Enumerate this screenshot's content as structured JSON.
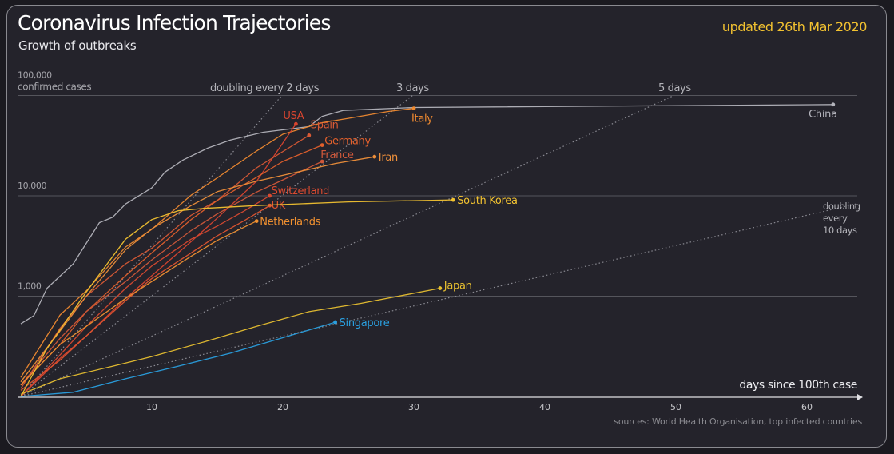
{
  "chart_data": {
    "type": "line",
    "title": "Coronavirus Infection Trajectories",
    "subtitle": "Growth of outbreaks",
    "updated": "updated 26th Mar 2020",
    "source": "sources: World Health Organisation, top infected countries",
    "xlabel": "days since 100th case",
    "ylabel": "confirmed cases",
    "xlim": [
      0,
      65
    ],
    "ylim": [
      100,
      100000
    ],
    "yscale": "log",
    "xticks": [
      10,
      20,
      30,
      40,
      50,
      60
    ],
    "yticks": [
      {
        "value": 1000,
        "label": "1,000"
      },
      {
        "value": 10000,
        "label": "10,000"
      },
      {
        "value": 100000,
        "label": "100,000"
      }
    ],
    "grid": true,
    "background": "#24232b",
    "guides": [
      {
        "doubling_days": 2,
        "label": "doubling every 2 days"
      },
      {
        "doubling_days": 3,
        "label": "3 days"
      },
      {
        "doubling_days": 5,
        "label": "5 days"
      },
      {
        "doubling_days": 10,
        "label": "doubling every 10 days"
      }
    ],
    "series": [
      {
        "name": "China",
        "color": "#b4b4bc",
        "x": [
          0,
          1,
          2,
          4,
          6,
          7,
          8,
          10,
          11,
          12.4,
          14.3,
          16,
          18.5,
          22,
          23,
          24.6,
          30,
          62
        ],
        "y": [
          530,
          640,
          1200,
          2100,
          5400,
          6100,
          8300,
          12000,
          17200,
          22800,
          30000,
          36000,
          43000,
          49000,
          62000,
          71000,
          76000,
          81300
        ]
      },
      {
        "name": "Italy",
        "color": "#f08a30",
        "x": [
          0,
          3,
          5,
          8,
          10,
          13,
          15,
          18,
          20,
          23,
          25,
          28,
          30
        ],
        "y": [
          155,
          650,
          1128,
          3089,
          4636,
          10149,
          15113,
          27980,
          41035,
          53578,
          59138,
          69176,
          74386
        ]
      },
      {
        "name": "USA",
        "color": "#d9452f",
        "x": [
          0,
          3,
          5,
          8,
          10,
          13,
          15,
          18,
          21
        ],
        "y": [
          100,
          240,
          400,
          950,
          1600,
          3500,
          6000,
          14000,
          52000
        ]
      },
      {
        "name": "Spain",
        "color": "#d95a35",
        "x": [
          0,
          3,
          5,
          8,
          10,
          13,
          15,
          18,
          22
        ],
        "y": [
          120,
          480,
          1000,
          2100,
          3000,
          6400,
          9000,
          19000,
          40000
        ]
      },
      {
        "name": "Germany",
        "color": "#e2602c",
        "x": [
          0,
          3,
          5,
          8,
          10,
          13,
          15,
          18,
          20,
          23
        ],
        "y": [
          130,
          330,
          700,
          1600,
          2700,
          5800,
          9000,
          15300,
          22000,
          32000
        ]
      },
      {
        "name": "France",
        "color": "#d0583a",
        "x": [
          0,
          3,
          5,
          8,
          10,
          13,
          15,
          18,
          20,
          23
        ],
        "y": [
          130,
          380,
          700,
          1400,
          2300,
          4500,
          6600,
          10900,
          14400,
          22000
        ]
      },
      {
        "name": "Iran",
        "color": "#f0903a",
        "x": [
          0,
          3,
          5,
          8,
          10,
          13,
          15,
          18,
          20,
          24,
          27
        ],
        "y": [
          140,
          450,
          1000,
          2900,
          4700,
          8000,
          11000,
          14000,
          16000,
          21000,
          24500
        ]
      },
      {
        "name": "Switzerland",
        "color": "#d84a30",
        "x": [
          0,
          3,
          5,
          8,
          10,
          13,
          15,
          17,
          19
        ],
        "y": [
          100,
          260,
          500,
          1200,
          2000,
          3700,
          5000,
          7000,
          10000
        ]
      },
      {
        "name": "UK",
        "color": "#e05530",
        "x": [
          0,
          3,
          5,
          8,
          10,
          13,
          15,
          17,
          19
        ],
        "y": [
          115,
          230,
          400,
          900,
          1500,
          2700,
          4000,
          5600,
          8000
        ]
      },
      {
        "name": "Netherlands",
        "color": "#f09030",
        "x": [
          0,
          3,
          5,
          8,
          10,
          13,
          15,
          18
        ],
        "y": [
          130,
          330,
          500,
          950,
          1400,
          2500,
          3600,
          5600
        ]
      },
      {
        "name": "South Korea",
        "color": "#f2c230",
        "x": [
          0,
          2,
          5,
          8,
          10,
          12,
          14,
          18,
          25,
          33
        ],
        "y": [
          100,
          300,
          1100,
          3700,
          5800,
          7100,
          7500,
          8000,
          8700,
          9100
        ]
      },
      {
        "name": "Japan",
        "color": "#e8c030",
        "x": [
          0,
          3,
          7,
          10,
          14,
          18,
          22,
          26,
          32
        ],
        "y": [
          105,
          150,
          200,
          250,
          350,
          500,
          700,
          850,
          1200
        ]
      },
      {
        "name": "Singapore",
        "color": "#2aa0e0",
        "x": [
          0,
          4,
          8,
          12,
          16,
          20,
          24
        ],
        "y": [
          100,
          110,
          150,
          200,
          270,
          385,
          550
        ]
      }
    ]
  }
}
